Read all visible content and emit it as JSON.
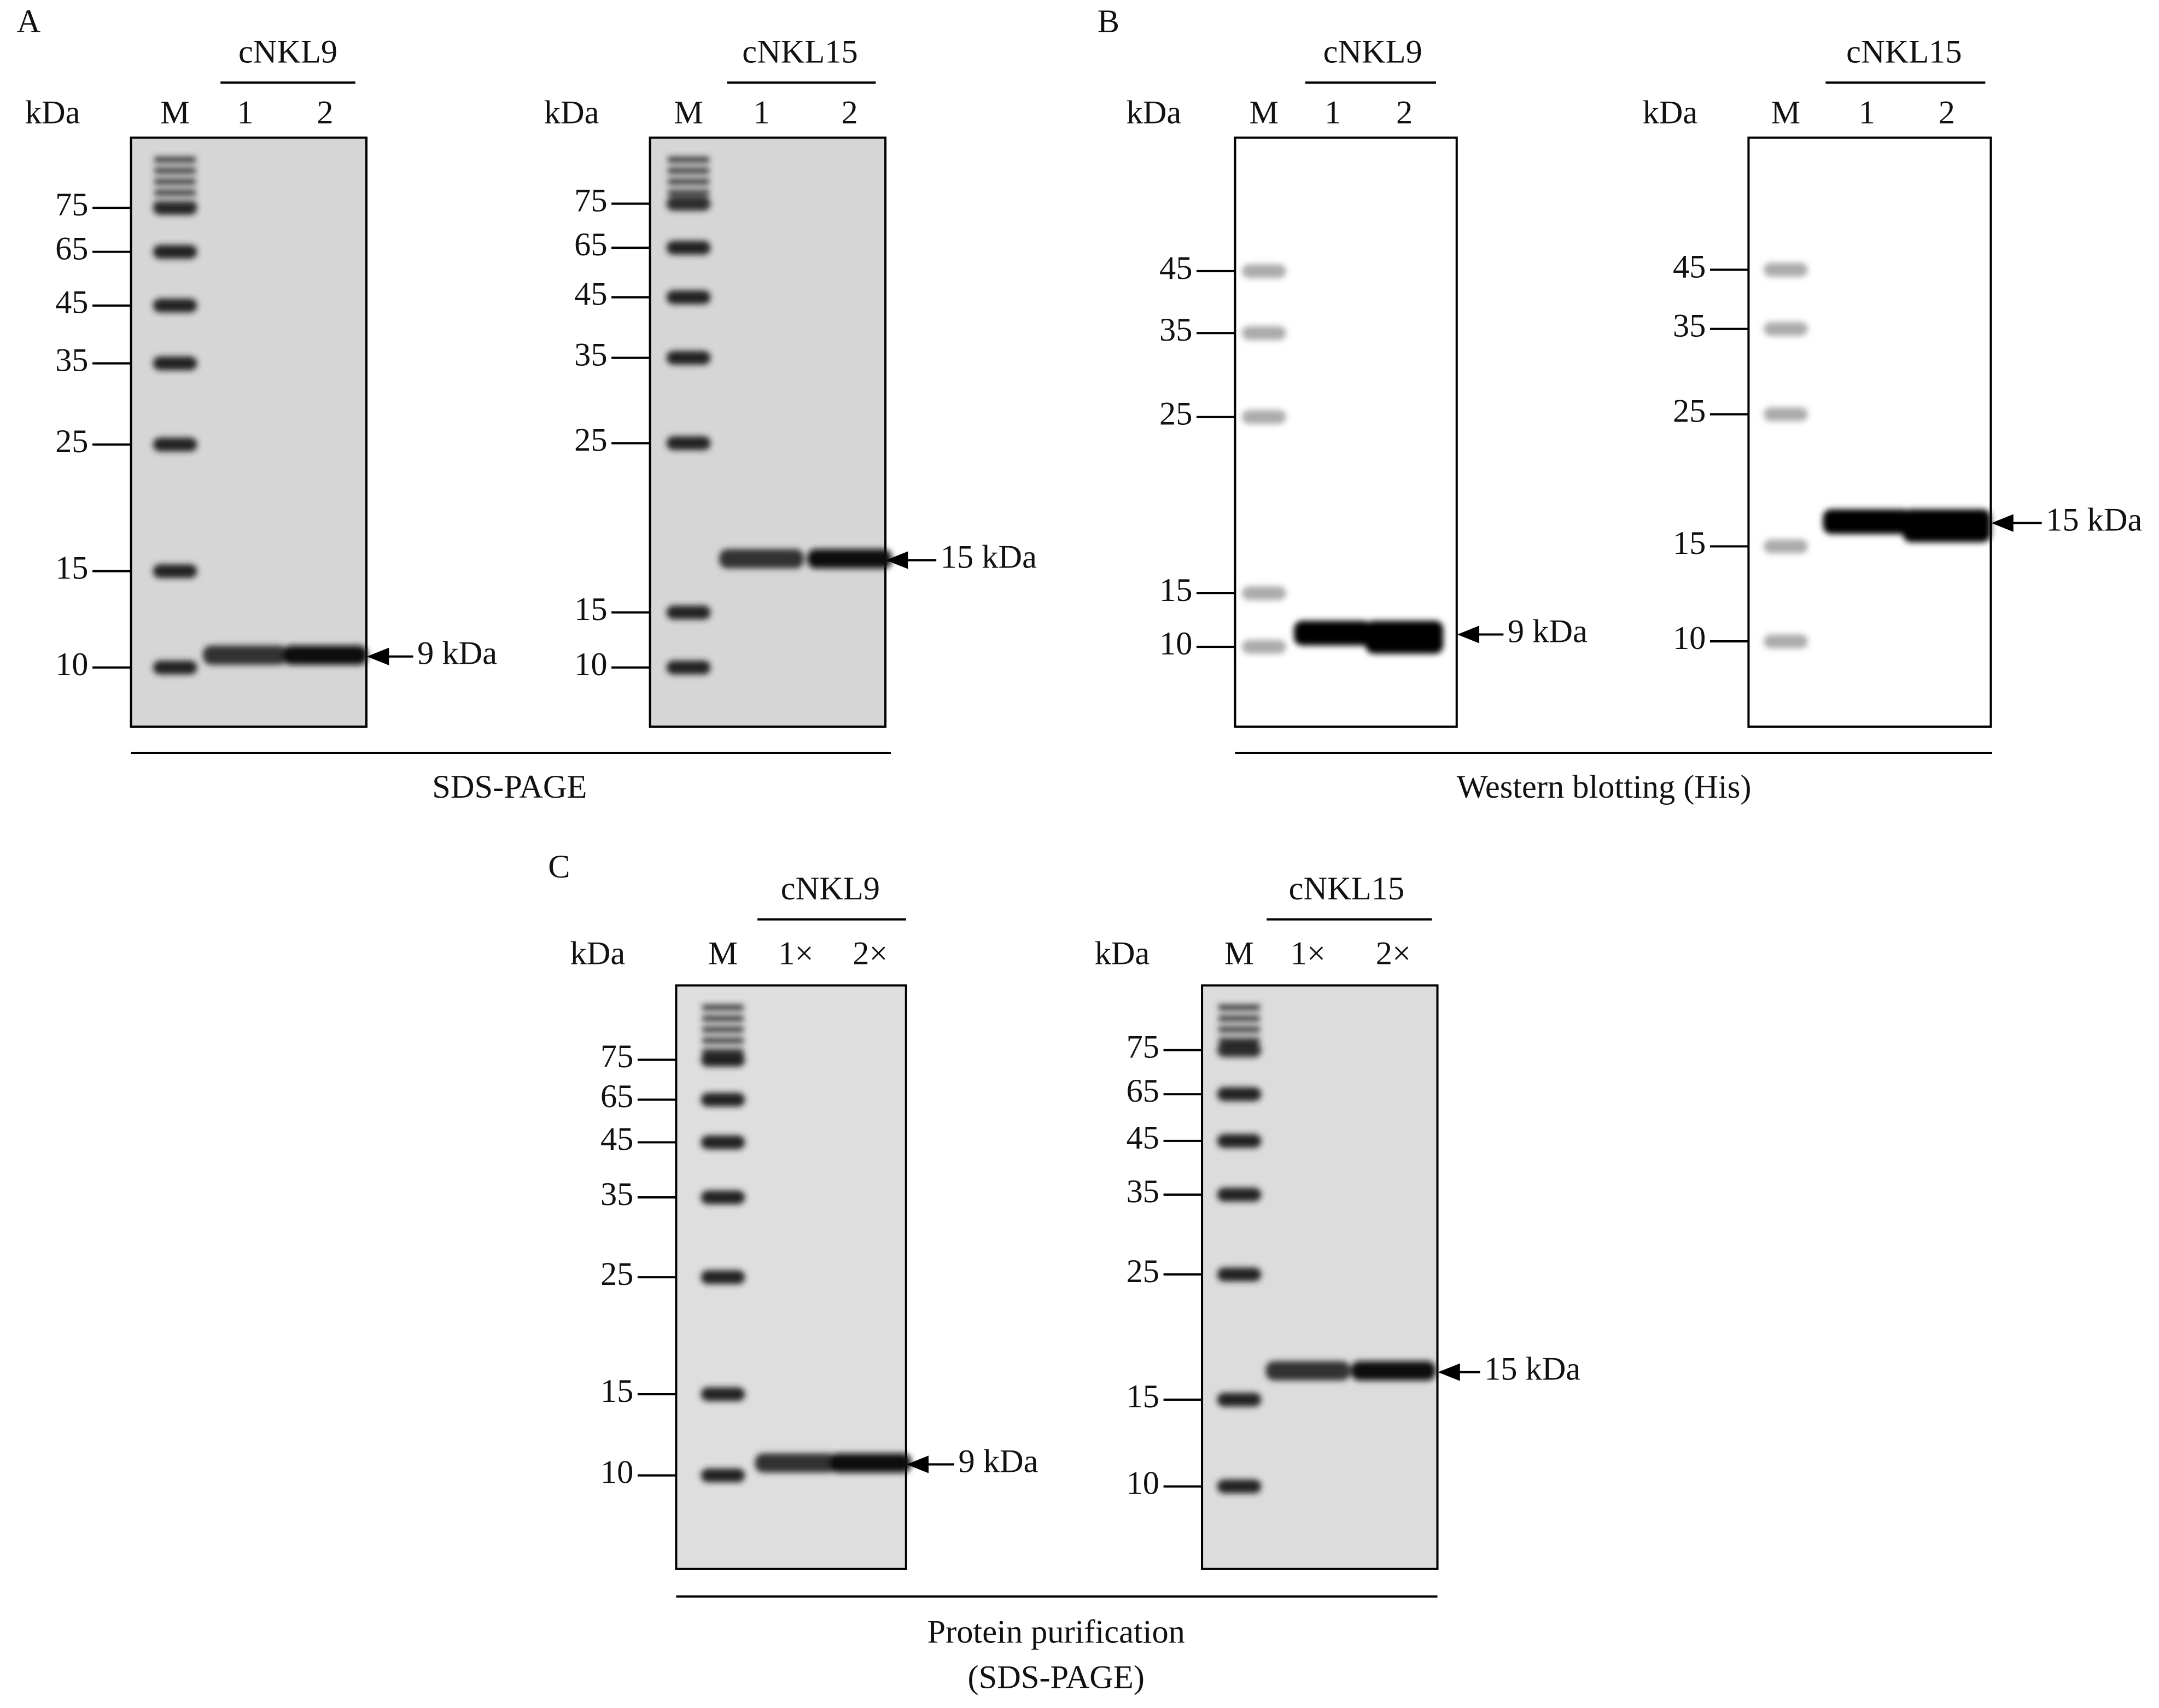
{
  "panels": [
    {
      "letter": "A",
      "caption": [
        "SDS-PAGE"
      ],
      "gels": [
        {
          "unit": "kDa",
          "title": "cNKL9",
          "lanes": [
            "M",
            "1",
            "2"
          ],
          "markers": [
            75,
            65,
            45,
            35,
            25,
            15,
            10
          ],
          "band": "9 kDa"
        },
        {
          "unit": "kDa",
          "title": "cNKL15",
          "lanes": [
            "M",
            "1",
            "2"
          ],
          "markers": [
            75,
            65,
            45,
            35,
            25,
            15,
            10
          ],
          "band": "15 kDa"
        }
      ]
    },
    {
      "letter": "B",
      "caption": [
        "Western blotting (His)"
      ],
      "gels": [
        {
          "unit": "kDa",
          "title": "cNKL9",
          "lanes": [
            "M",
            "1",
            "2"
          ],
          "markers": [
            45,
            35,
            25,
            15,
            10
          ],
          "band": "9 kDa"
        },
        {
          "unit": "kDa",
          "title": "cNKL15",
          "lanes": [
            "M",
            "1",
            "2"
          ],
          "markers": [
            45,
            35,
            25,
            15,
            10
          ],
          "band": "15 kDa"
        }
      ]
    },
    {
      "letter": "C",
      "caption": [
        "Protein purification",
        "(SDS-PAGE)"
      ],
      "gels": [
        {
          "unit": "kDa",
          "title": "cNKL9",
          "lanes": [
            "M",
            "1×",
            "2×"
          ],
          "markers": [
            75,
            65,
            45,
            35,
            25,
            15,
            10
          ],
          "band": "9 kDa"
        },
        {
          "unit": "kDa",
          "title": "cNKL15",
          "lanes": [
            "M",
            "1×",
            "2×"
          ],
          "markers": [
            75,
            65,
            45,
            35,
            25,
            15,
            10
          ],
          "band": "15 kDa"
        }
      ]
    }
  ]
}
